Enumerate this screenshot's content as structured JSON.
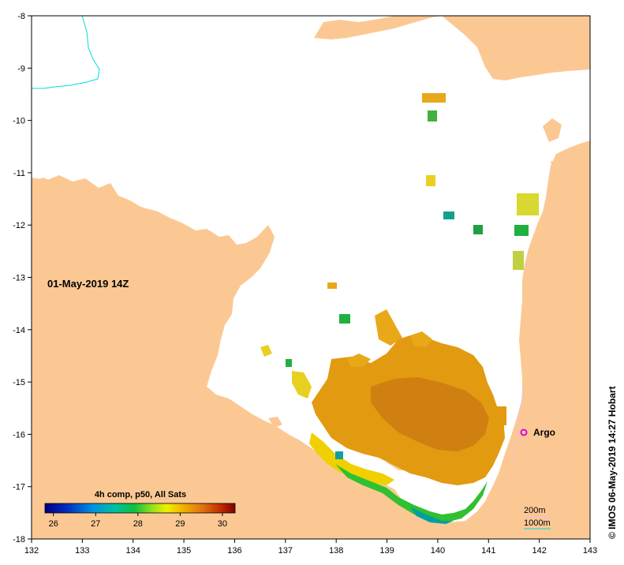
{
  "map": {
    "date_stamp": "01-May-2019 14Z",
    "credit": "© IMOS 06-May-2019 14:27 Hobart",
    "x_ticks": [
      "132",
      "133",
      "134",
      "135",
      "136",
      "137",
      "138",
      "139",
      "140",
      "141",
      "142",
      "143"
    ],
    "y_ticks": [
      "-8",
      "-9",
      "-10",
      "-11",
      "-12",
      "-13",
      "-14",
      "-15",
      "-16",
      "-17",
      "-18"
    ],
    "lon_range": [
      132,
      143
    ],
    "lat_range": [
      -18,
      -8
    ],
    "colors": {
      "land": "#fbc894",
      "sea_nodata": "#ffffff",
      "contour_200m": "#e8b8ff",
      "contour_1000m": "#00dcdc",
      "argo": "#e000e0"
    }
  },
  "legend": {
    "title": "4h comp, p50, All Sats",
    "ticks": [
      "26",
      "27",
      "28",
      "29",
      "30"
    ],
    "range": [
      25.8,
      30.3
    ]
  },
  "contour_legend": {
    "items": [
      "200m",
      "1000m"
    ]
  },
  "argo": {
    "label": "Argo",
    "lon": 141.7,
    "lat": -16.0
  }
}
